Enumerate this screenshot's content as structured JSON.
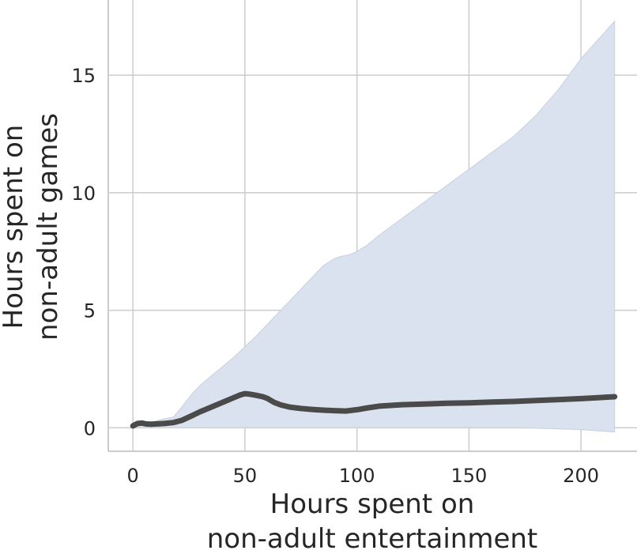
{
  "chart_data": {
    "type": "line",
    "xlabel": [
      "Hours spent on",
      "non-adult entertainment"
    ],
    "ylabel": [
      "Hours spent on",
      "non-adult games"
    ],
    "xlim": [
      -11,
      225
    ],
    "ylim": [
      -1,
      18.2
    ],
    "xticks": [
      0,
      50,
      100,
      150,
      200
    ],
    "yticks": [
      0,
      5,
      10,
      15
    ],
    "grid": true,
    "colors": {
      "line": "#4a4a4a",
      "band_fill": "#dbe2ef",
      "band_edge": "#c5d0e3",
      "grid": "#cccccc",
      "spine": "#cccccc",
      "text": "#262626"
    },
    "series": [
      {
        "x": [
          0,
          2,
          4,
          6,
          8,
          10,
          14,
          18,
          22,
          26,
          30,
          35,
          40,
          45,
          48,
          50,
          52,
          55,
          58,
          60,
          63,
          66,
          70,
          75,
          80,
          85,
          90,
          95,
          100,
          105,
          110,
          120,
          130,
          140,
          150,
          160,
          170,
          180,
          190,
          200,
          215
        ],
        "y": [
          0.08,
          0.18,
          0.2,
          0.16,
          0.15,
          0.16,
          0.18,
          0.22,
          0.32,
          0.5,
          0.68,
          0.88,
          1.08,
          1.28,
          1.4,
          1.45,
          1.43,
          1.38,
          1.32,
          1.25,
          1.08,
          0.97,
          0.88,
          0.82,
          0.78,
          0.75,
          0.73,
          0.71,
          0.77,
          0.85,
          0.92,
          0.98,
          1.01,
          1.04,
          1.06,
          1.09,
          1.12,
          1.16,
          1.2,
          1.24,
          1.32
        ]
      }
    ],
    "band": {
      "x": [
        0,
        5,
        10,
        15,
        18,
        22,
        26,
        30,
        35,
        40,
        45,
        50,
        55,
        60,
        65,
        70,
        75,
        80,
        85,
        90,
        93,
        95,
        97,
        100,
        105,
        110,
        120,
        130,
        140,
        150,
        160,
        170,
        180,
        190,
        200,
        215
      ],
      "upper": [
        0.05,
        0.12,
        0.28,
        0.4,
        0.45,
        0.9,
        1.4,
        1.8,
        2.2,
        2.6,
        3.0,
        3.45,
        3.9,
        4.4,
        4.9,
        5.4,
        5.9,
        6.4,
        6.9,
        7.2,
        7.3,
        7.33,
        7.38,
        7.5,
        7.8,
        8.2,
        8.9,
        9.6,
        10.3,
        11.0,
        11.7,
        12.4,
        13.3,
        14.4,
        15.7,
        17.3
      ],
      "lower": [
        0.0,
        0.0,
        0.0,
        0.0,
        0.0,
        0.0,
        0.0,
        0.0,
        0.0,
        0.0,
        0.0,
        0.0,
        0.0,
        0.0,
        0.0,
        0.0,
        0.0,
        0.0,
        0.0,
        0.0,
        0.0,
        0.0,
        0.0,
        0.0,
        0.0,
        0.0,
        0.0,
        0.0,
        0.0,
        0.0,
        0.0,
        0.0,
        -0.02,
        -0.05,
        -0.08,
        -0.18
      ]
    }
  }
}
